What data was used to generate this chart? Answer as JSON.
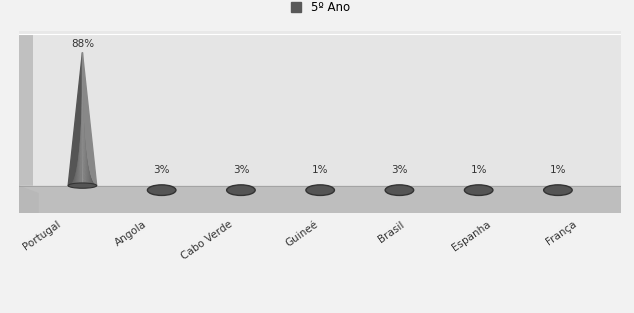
{
  "categories": [
    "Portugal",
    "Angola",
    "Cabo Verde",
    "Guineé",
    "Brasil",
    "Espanha",
    "França"
  ],
  "values": [
    88,
    3,
    3,
    1,
    3,
    1,
    1
  ],
  "labels": [
    "88%",
    "3%",
    "3%",
    "1%",
    "3%",
    "1%",
    "1%"
  ],
  "legend_label": "5º Ano",
  "legend_color": "#595959",
  "label_fontsize": 7.5,
  "tick_fontsize": 7.5,
  "bg_color": "#e8e8e8",
  "outer_bg": "#f2f2f2",
  "cone_dark": "#555555",
  "cone_light": "#888888",
  "cone_base_color": "#666666",
  "floor_top_color": "#c8c8c8",
  "floor_front_color": "#b0b0b0",
  "floor_side_color": "#a8a8a8",
  "wall_left_color": "#c0c0c0",
  "ellipse_color": "#555555",
  "ellipse_edge": "#333333"
}
